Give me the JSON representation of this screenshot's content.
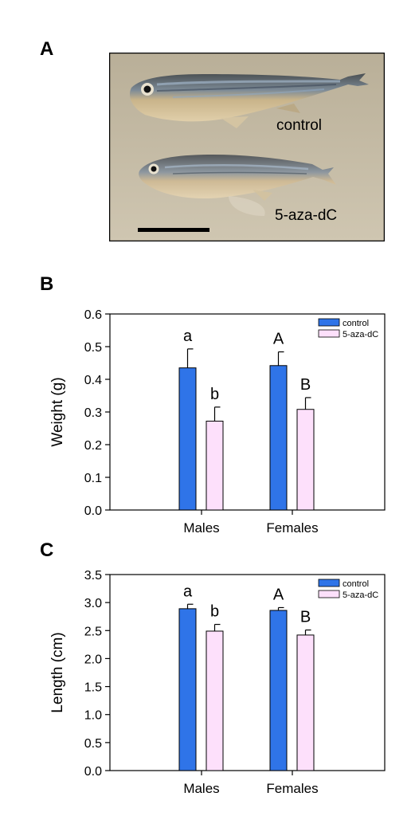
{
  "panels": {
    "a": {
      "letter": "A",
      "label_top": "control",
      "label_bottom": "5-aza-dC"
    },
    "b": {
      "letter": "B"
    },
    "c": {
      "letter": "C"
    }
  },
  "colors": {
    "control": "#2f74e8",
    "aza": "#fde0fb",
    "photo_bg": "#c7bda6",
    "error_bar": "#000000"
  },
  "chart_data": [
    {
      "type": "bar",
      "ylabel": "Weight (g)",
      "xlabel": "",
      "categories": [
        "Males",
        "Females"
      ],
      "ylim": [
        0,
        0.6
      ],
      "yticks": [
        "0.0",
        "0.1",
        "0.2",
        "0.3",
        "0.4",
        "0.5",
        "0.6"
      ],
      "grid": false,
      "legend": "top-right",
      "series": [
        {
          "name": "control",
          "values": [
            0.435,
            0.442
          ],
          "errors": [
            0.058,
            0.042
          ],
          "letters": [
            "a",
            "A"
          ]
        },
        {
          "name": "5-aza-dC",
          "values": [
            0.272,
            0.308
          ],
          "errors": [
            0.043,
            0.036
          ],
          "letters": [
            "b",
            "B"
          ]
        }
      ]
    },
    {
      "type": "bar",
      "ylabel": "Length (cm)",
      "xlabel": "",
      "categories": [
        "Males",
        "Females"
      ],
      "ylim": [
        0,
        3.5
      ],
      "yticks": [
        "0.0",
        "0.5",
        "1.0",
        "1.5",
        "2.0",
        "2.5",
        "3.0",
        "3.5"
      ],
      "grid": false,
      "legend": "top-right",
      "series": [
        {
          "name": "control",
          "values": [
            2.89,
            2.86
          ],
          "errors": [
            0.08,
            0.05
          ],
          "letters": [
            "a",
            "A"
          ]
        },
        {
          "name": "5-aza-dC",
          "values": [
            2.49,
            2.42
          ],
          "errors": [
            0.12,
            0.09
          ],
          "letters": [
            "b",
            "B"
          ]
        }
      ]
    }
  ]
}
